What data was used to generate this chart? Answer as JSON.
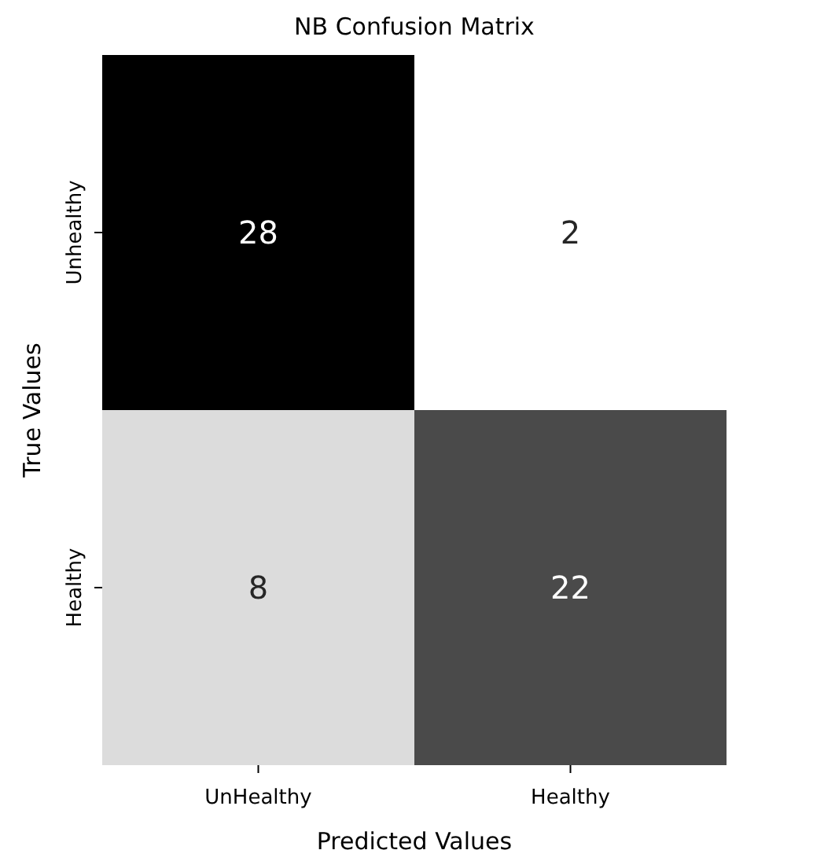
{
  "chart_data": {
    "type": "heatmap",
    "title": "NB Confusion Matrix",
    "xlabel": "Predicted Values",
    "ylabel": "True Values",
    "categories": [
      "UnHealthy",
      "Healthy"
    ],
    "y_categories": [
      "Unhealthy",
      "Healthy"
    ],
    "cells": [
      [
        28,
        2
      ],
      [
        8,
        22
      ]
    ],
    "data_labels": true
  }
}
